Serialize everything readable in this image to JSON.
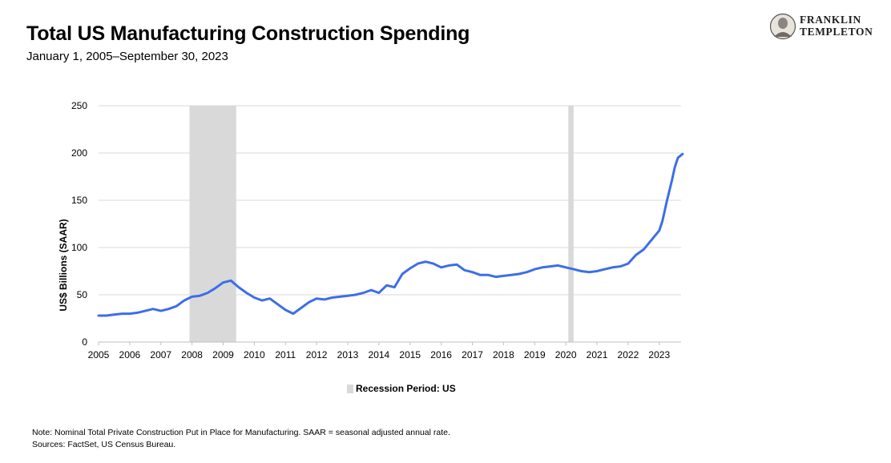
{
  "header": {
    "title": "Total US Manufacturing Construction Spending",
    "subtitle": "January 1, 2005–September 30, 2023"
  },
  "logo": {
    "line1": "FRANKLIN",
    "line2": "TEMPLETON"
  },
  "legend": {
    "recession_label": "Recession Period: US"
  },
  "footnote": {
    "note": "Note: Nominal Total Private Construction Put in Place for Manufacturing.  SAAR = seasonal adjusted annual rate.",
    "sources": "Sources: FactSet, US Census Bureau."
  },
  "colors": {
    "line": "#3d6ee8",
    "recession": "#d9d9d9",
    "grid": "#d9d9d9"
  },
  "chart_data": {
    "type": "line",
    "title": "Total US Manufacturing Construction Spending",
    "ylabel": "US$ Billions (SAAR)",
    "xlabel": "",
    "ylim": [
      0,
      250
    ],
    "yticks": [
      0,
      50,
      100,
      150,
      200,
      250
    ],
    "xlim": [
      2005,
      2023.75
    ],
    "xticks": [
      "2005",
      "2006",
      "2007",
      "2008",
      "2009",
      "2010",
      "2011",
      "2012",
      "2013",
      "2014",
      "2015",
      "2016",
      "2017",
      "2018",
      "2019",
      "2020",
      "2021",
      "2022",
      "2023"
    ],
    "grid": true,
    "legend_position": "bottom",
    "recession_periods": [
      [
        2007.92,
        2009.42
      ],
      [
        2020.08,
        2020.25
      ]
    ],
    "x": [
      2005.0,
      2005.25,
      2005.5,
      2005.75,
      2006.0,
      2006.25,
      2006.5,
      2006.75,
      2007.0,
      2007.25,
      2007.5,
      2007.75,
      2008.0,
      2008.25,
      2008.5,
      2008.75,
      2009.0,
      2009.25,
      2009.5,
      2009.75,
      2010.0,
      2010.25,
      2010.5,
      2010.75,
      2011.0,
      2011.25,
      2011.5,
      2011.75,
      2012.0,
      2012.25,
      2012.5,
      2012.75,
      2013.0,
      2013.25,
      2013.5,
      2013.75,
      2014.0,
      2014.25,
      2014.5,
      2014.75,
      2015.0,
      2015.25,
      2015.5,
      2015.75,
      2016.0,
      2016.25,
      2016.5,
      2016.75,
      2017.0,
      2017.25,
      2017.5,
      2017.75,
      2018.0,
      2018.25,
      2018.5,
      2018.75,
      2019.0,
      2019.25,
      2019.5,
      2019.75,
      2020.0,
      2020.25,
      2020.5,
      2020.75,
      2021.0,
      2021.25,
      2021.5,
      2021.75,
      2022.0,
      2022.25,
      2022.5,
      2022.75,
      2023.0,
      2023.1,
      2023.25,
      2023.4,
      2023.5,
      2023.6,
      2023.75
    ],
    "series": [
      {
        "values": [
          28,
          28,
          29,
          30,
          30,
          31,
          33,
          35,
          33,
          35,
          38,
          44,
          48,
          49,
          52,
          57,
          63,
          65,
          58,
          52,
          47,
          44,
          46,
          40,
          34,
          30,
          36,
          42,
          46,
          45,
          47,
          48,
          49,
          50,
          52,
          55,
          52,
          60,
          58,
          72,
          78,
          83,
          85,
          83,
          79,
          81,
          82,
          76,
          74,
          71,
          71,
          69,
          70,
          71,
          72,
          74,
          77,
          79,
          80,
          81,
          79,
          77,
          75,
          74,
          75,
          77,
          79,
          80,
          83,
          92,
          98,
          108,
          118,
          128,
          150,
          170,
          185,
          195,
          199
        ],
        "note": "values read from chart"
      }
    ]
  }
}
